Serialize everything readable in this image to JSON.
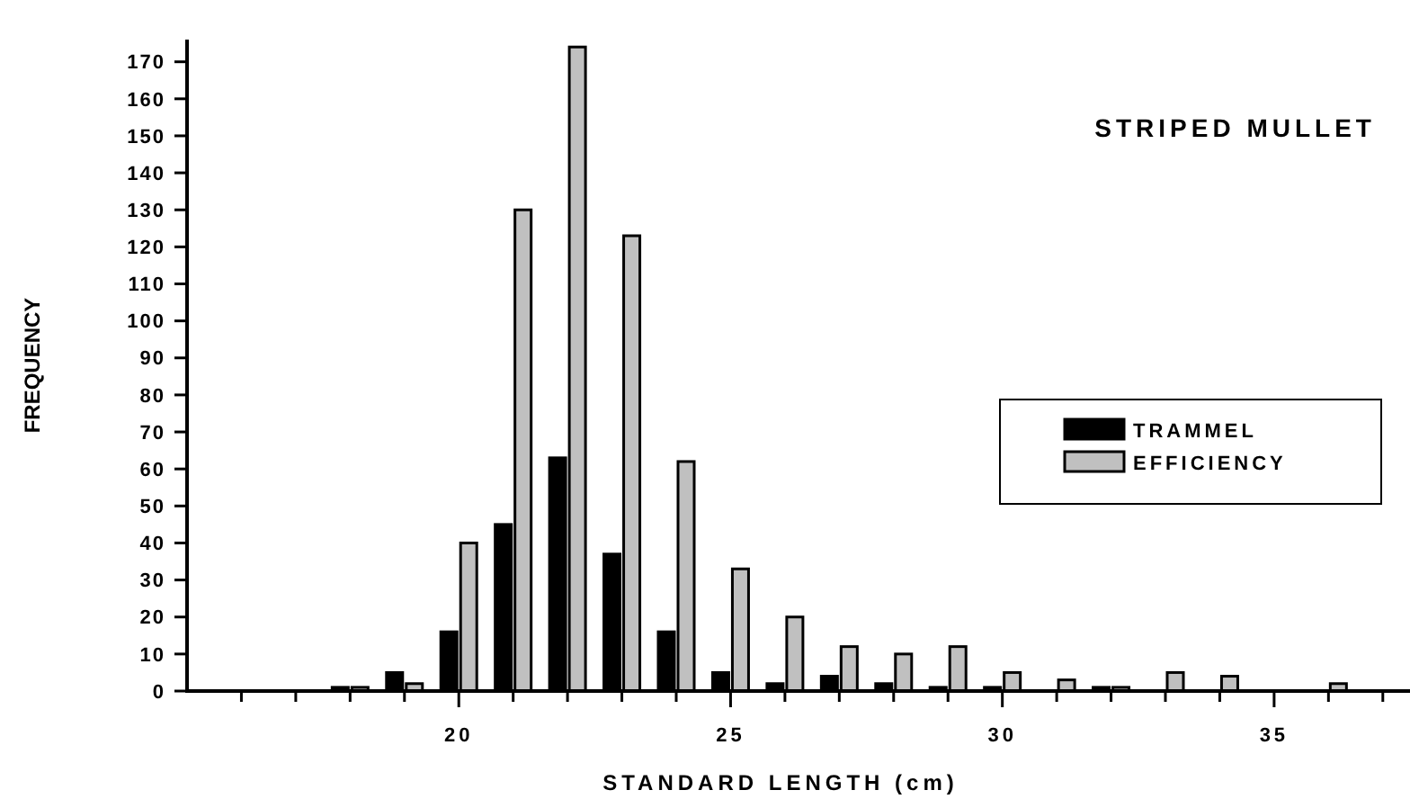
{
  "chart_data": {
    "type": "bar",
    "title": "STRIPED MULLET",
    "xlabel": "STANDARD LENGTH (cm)",
    "ylabel": "FREQUENCY",
    "x": [
      18,
      19,
      20,
      21,
      22,
      23,
      24,
      25,
      26,
      27,
      28,
      29,
      30,
      31,
      32,
      33,
      34,
      35,
      36
    ],
    "series": [
      {
        "name": "TRAMMEL",
        "color": "#000000",
        "values": [
          1,
          5,
          16,
          45,
          63,
          37,
          16,
          5,
          2,
          4,
          2,
          1,
          1,
          0,
          1,
          0,
          0,
          0,
          0
        ]
      },
      {
        "name": "EFFICIENCY",
        "color": "#c0c0c0",
        "values": [
          1,
          2,
          40,
          130,
          174,
          123,
          62,
          33,
          20,
          12,
          10,
          12,
          5,
          3,
          1,
          5,
          4,
          0,
          2
        ]
      }
    ],
    "xlim": [
      15,
      37.5
    ],
    "xticks": [
      {
        "value": 16,
        "label": null
      },
      {
        "value": 17,
        "label": null
      },
      {
        "value": 18,
        "label": null
      },
      {
        "value": 19,
        "label": null
      },
      20,
      {
        "value": 21,
        "label": null
      },
      {
        "value": 22,
        "label": null
      },
      {
        "value": 23,
        "label": null
      },
      {
        "value": 24,
        "label": null
      },
      25,
      {
        "value": 26,
        "label": null
      },
      {
        "value": 27,
        "label": null
      },
      {
        "value": 28,
        "label": null
      },
      {
        "value": 29,
        "label": null
      },
      30,
      {
        "value": 31,
        "label": null
      },
      {
        "value": 32,
        "label": null
      },
      {
        "value": 33,
        "label": null
      },
      {
        "value": 34,
        "label": null
      },
      35,
      {
        "value": 36,
        "label": null
      },
      {
        "value": 37,
        "label": null
      }
    ],
    "ylim": [
      0,
      176
    ],
    "yticks": [
      0,
      10,
      20,
      30,
      40,
      50,
      60,
      70,
      80,
      90,
      100,
      110,
      120,
      130,
      140,
      150,
      160,
      170
    ],
    "legend": "right",
    "grid": false
  }
}
